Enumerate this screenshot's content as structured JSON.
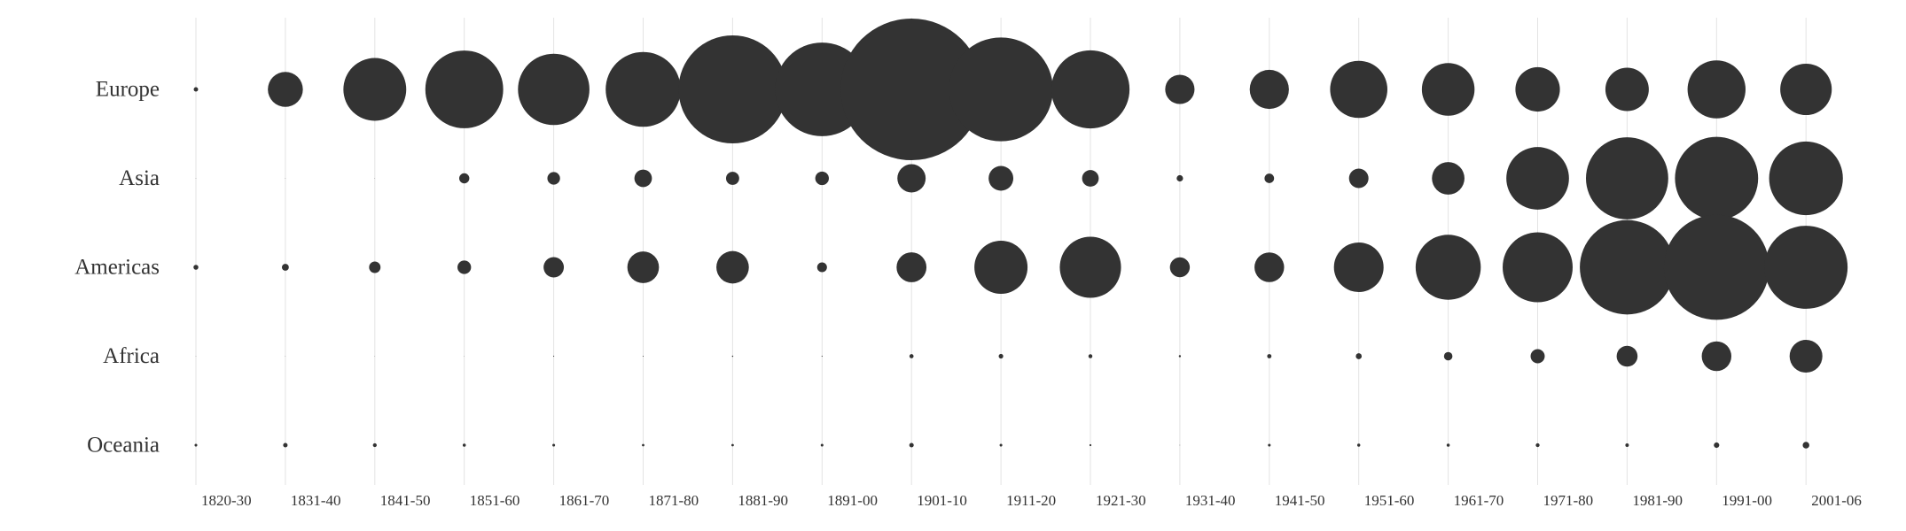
{
  "chart_data": {
    "type": "bubble-grid",
    "title": "",
    "xlabel": "",
    "ylabel": "",
    "grid": "vertical lines at each period",
    "legend": "none",
    "bubble_color": "#333333",
    "grid_color": "#e3e3e3",
    "text_color": "#333333",
    "x": [
      "1820-30",
      "1831-40",
      "1841-50",
      "1851-60",
      "1861-70",
      "1871-80",
      "1881-90",
      "1891-00",
      "1901-10",
      "1911-20",
      "1921-30",
      "1931-40",
      "1941-50",
      "1951-60",
      "1961-70",
      "1971-80",
      "1981-90",
      "1991-00",
      "2001-06"
    ],
    "series": [
      {
        "name": "Europe",
        "values": [
          7700,
          495700,
          1597500,
          2452500,
          2065300,
          2272300,
          4737000,
          3559000,
          8136000,
          4377000,
          2477000,
          348000,
          621000,
          1326000,
          1123000,
          800000,
          762000,
          1359000,
          1073000
        ]
      },
      {
        "name": "Asia",
        "values": [
          30,
          60,
          80,
          41500,
          64800,
          124200,
          69900,
          74900,
          323500,
          247200,
          112100,
          16600,
          37000,
          153200,
          427600,
          1588000,
          2738000,
          2796000,
          2200000
        ]
      },
      {
        "name": "Americas",
        "values": [
          9700,
          19500,
          53100,
          74700,
          166600,
          404000,
          426900,
          38970,
          361900,
          1143700,
          1516700,
          160000,
          354800,
          996900,
          1716000,
          1982000,
          3615000,
          4486000,
          2800000
        ]
      },
      {
        "name": "Africa",
        "values": [
          15,
          50,
          61,
          84,
          407,
          371,
          763,
          432,
          7000,
          8400,
          6300,
          1800,
          7400,
          14100,
          29000,
          80800,
          176900,
          355000,
          435000
        ]
      },
      {
        "name": "Oceania",
        "values": [
          3000,
          8000,
          6000,
          4000,
          3000,
          2500,
          2500,
          3000,
          8000,
          3000,
          1500,
          150,
          3000,
          3800,
          4000,
          6000,
          5000,
          12000,
          18000
        ]
      }
    ]
  }
}
